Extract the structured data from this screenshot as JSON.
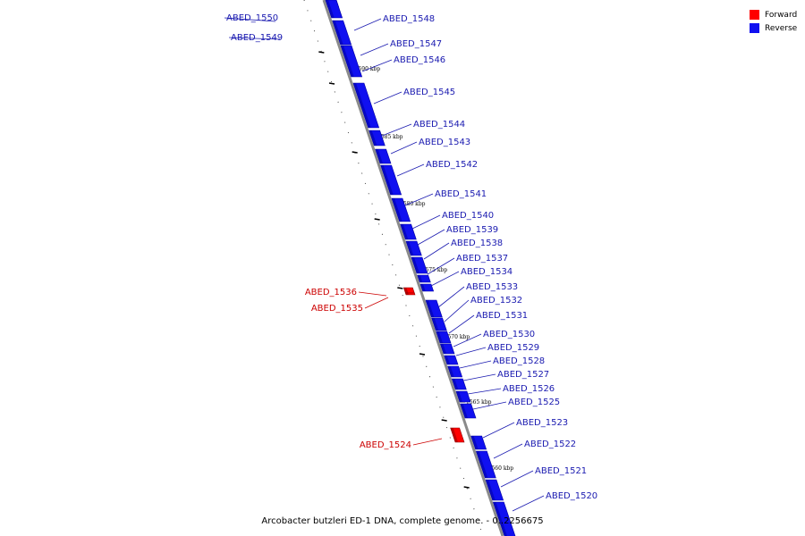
{
  "colors": {
    "forward": "#ff0000",
    "reverse": "#1010f0",
    "backbone": "#8a8a8a",
    "label_reverse": "#1a1ab0",
    "label_forward": "#cc0000"
  },
  "legend": [
    {
      "label": "Forward",
      "color": "#ff0000"
    },
    {
      "label": "Reverse",
      "color": "#1010f0"
    }
  ],
  "caption": "Arcobacter butzleri ED-1 DNA, complete genome. - 0..2256675",
  "scale_labels": [
    "1590 kbp",
    "1585 kbp",
    "1580 kbp",
    "1575 kbp",
    "1570 kbp",
    "1565 kbp",
    "1560 kbp"
  ],
  "genes": [
    {
      "name": "ABED_1550",
      "strand": "reverse"
    },
    {
      "name": "ABED_1549",
      "strand": "reverse"
    },
    {
      "name": "ABED_1548",
      "strand": "reverse"
    },
    {
      "name": "ABED_1547",
      "strand": "reverse"
    },
    {
      "name": "ABED_1546",
      "strand": "reverse"
    },
    {
      "name": "ABED_1545",
      "strand": "reverse"
    },
    {
      "name": "ABED_1544",
      "strand": "reverse"
    },
    {
      "name": "ABED_1543",
      "strand": "reverse"
    },
    {
      "name": "ABED_1542",
      "strand": "reverse"
    },
    {
      "name": "ABED_1541",
      "strand": "reverse"
    },
    {
      "name": "ABED_1540",
      "strand": "reverse"
    },
    {
      "name": "ABED_1539",
      "strand": "reverse"
    },
    {
      "name": "ABED_1538",
      "strand": "reverse"
    },
    {
      "name": "ABED_1537",
      "strand": "reverse"
    },
    {
      "name": "ABED_1534",
      "strand": "reverse"
    },
    {
      "name": "ABED_1533",
      "strand": "reverse"
    },
    {
      "name": "ABED_1536",
      "strand": "forward"
    },
    {
      "name": "ABED_1535",
      "strand": "forward"
    },
    {
      "name": "ABED_1532",
      "strand": "reverse"
    },
    {
      "name": "ABED_1531",
      "strand": "reverse"
    },
    {
      "name": "ABED_1530",
      "strand": "reverse"
    },
    {
      "name": "ABED_1529",
      "strand": "reverse"
    },
    {
      "name": "ABED_1528",
      "strand": "reverse"
    },
    {
      "name": "ABED_1527",
      "strand": "reverse"
    },
    {
      "name": "ABED_1526",
      "strand": "reverse"
    },
    {
      "name": "ABED_1525",
      "strand": "reverse"
    },
    {
      "name": "ABED_1524",
      "strand": "forward"
    },
    {
      "name": "ABED_1523",
      "strand": "reverse"
    },
    {
      "name": "ABED_1522",
      "strand": "reverse"
    },
    {
      "name": "ABED_1521",
      "strand": "reverse"
    },
    {
      "name": "ABED_1520",
      "strand": "reverse"
    }
  ]
}
